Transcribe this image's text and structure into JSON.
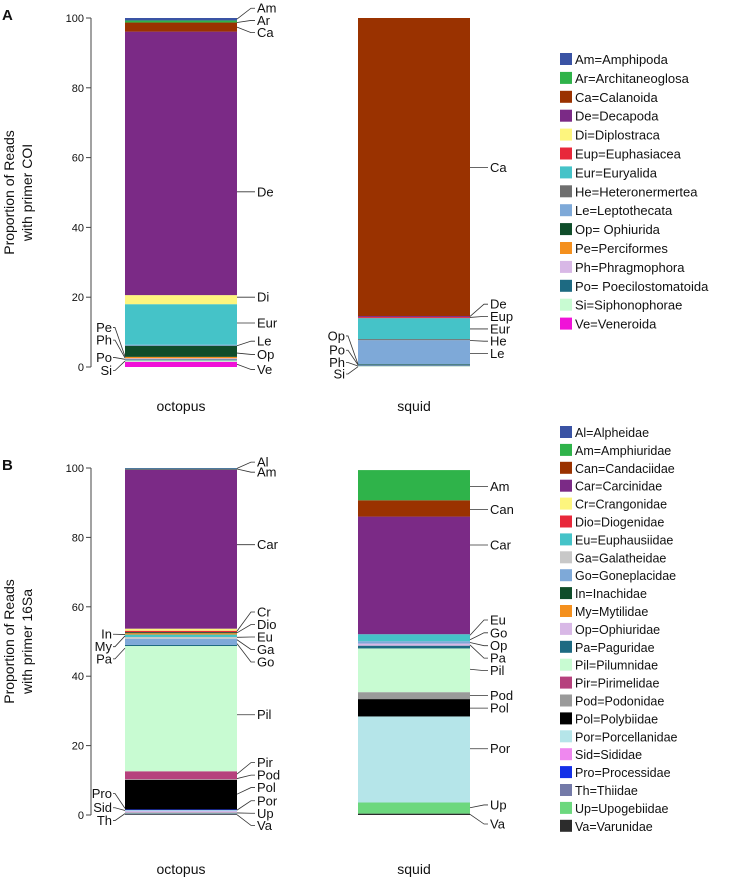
{
  "chart_data": [
    {
      "panel": "A",
      "type": "bar",
      "stacked": true,
      "ylabel_line1": "Proportion of Reads",
      "ylabel_line2": "with primer COI",
      "ylim": [
        0,
        100
      ],
      "yticks": [
        0,
        20,
        40,
        60,
        80,
        100
      ],
      "categories": [
        "octopus",
        "squid"
      ],
      "legend": [
        {
          "key": "Am",
          "label": "Am=Amphipoda",
          "color": "#3a53a4"
        },
        {
          "key": "Ar",
          "label": "Ar=Architaneoglosa",
          "color": "#2fb34a"
        },
        {
          "key": "Ca",
          "label": "Ca=Calanoida",
          "color": "#9a3200"
        },
        {
          "key": "De",
          "label": "De=Decapoda",
          "color": "#7b2a86"
        },
        {
          "key": "Di",
          "label": "Di=Diplostraca",
          "color": "#fdf57e"
        },
        {
          "key": "Eup",
          "label": "Eup=Euphasiacea",
          "color": "#e8283a"
        },
        {
          "key": "Eur",
          "label": "Eur=Euryalida",
          "color": "#45c3c8"
        },
        {
          "key": "He",
          "label": "He=Heteronermertea",
          "color": "#6f6f6f"
        },
        {
          "key": "Le",
          "label": "Le=Leptothecata",
          "color": "#7ea9d8"
        },
        {
          "key": "Op",
          "label": "Op= Ophiurida",
          "color": "#0f4d2a"
        },
        {
          "key": "Pe",
          "label": "Pe=Perciformes",
          "color": "#f4901e"
        },
        {
          "key": "Ph",
          "label": "Ph=Phragmophora",
          "color": "#d8b8e6"
        },
        {
          "key": "Po",
          "label": "Po= Poecilostomatoida",
          "color": "#1d6a82"
        },
        {
          "key": "Si",
          "label": "Si=Siphonophorae",
          "color": "#c8fbd2"
        },
        {
          "key": "Ve",
          "label": "Ve=Veneroida",
          "color": "#f012d8"
        }
      ],
      "series": [
        {
          "name": "octopus",
          "segments": [
            {
              "key": "Ve",
              "value": 1.5
            },
            {
              "key": "Si",
              "value": 0.4
            },
            {
              "key": "Po",
              "value": 0.3
            },
            {
              "key": "Ph",
              "value": 0.3
            },
            {
              "key": "Pe",
              "value": 0.4
            },
            {
              "key": "Op",
              "value": 3.2
            },
            {
              "key": "Le",
              "value": 0.3
            },
            {
              "key": "Eur",
              "value": 11.6
            },
            {
              "key": "Di",
              "value": 2.6
            },
            {
              "key": "De",
              "value": 75.5
            },
            {
              "key": "Ca",
              "value": 2.6
            },
            {
              "key": "Ar",
              "value": 0.6
            },
            {
              "key": "Am",
              "value": 0.7
            }
          ]
        },
        {
          "name": "squid",
          "segments": [
            {
              "key": "Si",
              "value": 0.2
            },
            {
              "key": "Ph",
              "value": 0.2
            },
            {
              "key": "Po",
              "value": 0.3
            },
            {
              "key": "Op",
              "value": 0.1
            },
            {
              "key": "Le",
              "value": 6.9
            },
            {
              "key": "He",
              "value": 0.3
            },
            {
              "key": "Eur",
              "value": 6.0
            },
            {
              "key": "Eup",
              "value": 0.3
            },
            {
              "key": "De",
              "value": 0.3
            },
            {
              "key": "Ca",
              "value": 85.4
            }
          ]
        }
      ],
      "annotations": [
        {
          "bar": "octopus",
          "side": "right",
          "label": "Am",
          "y": 102.8,
          "at": 99.7
        },
        {
          "bar": "octopus",
          "side": "right",
          "label": "Ar",
          "y": 99.3,
          "at": 98.7
        },
        {
          "bar": "octopus",
          "side": "right",
          "label": "Ca",
          "y": 95.8,
          "at": 97.4
        },
        {
          "bar": "octopus",
          "side": "right",
          "label": "De",
          "y": 50.2,
          "at": 50.2
        },
        {
          "bar": "octopus",
          "side": "right",
          "label": "Di",
          "y": 20.0,
          "at": 20.0
        },
        {
          "bar": "octopus",
          "side": "right",
          "label": "Eur",
          "y": 12.6,
          "at": 12.6
        },
        {
          "bar": "octopus",
          "side": "right",
          "label": "Le",
          "y": 7.4,
          "at": 6.1
        },
        {
          "bar": "octopus",
          "side": "right",
          "label": "Op",
          "y": 3.6,
          "at": 4.0
        },
        {
          "bar": "octopus",
          "side": "right",
          "label": "Ve",
          "y": -0.7,
          "at": 0.8
        },
        {
          "bar": "octopus",
          "side": "left",
          "label": "Pe",
          "y": 11.3,
          "at": 3.0
        },
        {
          "bar": "octopus",
          "side": "left",
          "label": "Ph",
          "y": 7.7,
          "at": 2.6
        },
        {
          "bar": "octopus",
          "side": "left",
          "label": "Po",
          "y": 2.7,
          "at": 2.2
        },
        {
          "bar": "octopus",
          "side": "left",
          "label": "Si",
          "y": -1.0,
          "at": 1.7
        },
        {
          "bar": "squid",
          "side": "right",
          "label": "Ca",
          "y": 57.2,
          "at": 57.2
        },
        {
          "bar": "squid",
          "side": "right",
          "label": "De",
          "y": 18.0,
          "at": 14.5
        },
        {
          "bar": "squid",
          "side": "right",
          "label": "Eup",
          "y": 14.5,
          "at": 14.2
        },
        {
          "bar": "squid",
          "side": "right",
          "label": "Eur",
          "y": 10.9,
          "at": 10.9
        },
        {
          "bar": "squid",
          "side": "right",
          "label": "He",
          "y": 7.4,
          "at": 7.6
        },
        {
          "bar": "squid",
          "side": "right",
          "label": "Le",
          "y": 3.9,
          "at": 3.9
        },
        {
          "bar": "squid",
          "side": "left",
          "label": "Op",
          "y": 8.9,
          "at": 0.8
        },
        {
          "bar": "squid",
          "side": "left",
          "label": "Po",
          "y": 4.8,
          "at": 0.6
        },
        {
          "bar": "squid",
          "side": "left",
          "label": "Ph",
          "y": 1.3,
          "at": 0.3
        },
        {
          "bar": "squid",
          "side": "left",
          "label": "Si",
          "y": -2.0,
          "at": 0.1
        }
      ]
    },
    {
      "panel": "B",
      "type": "bar",
      "stacked": true,
      "ylabel_line1": "Proportion of Reads",
      "ylabel_line2": "with primer 16Sa",
      "ylim": [
        0,
        100
      ],
      "yticks": [
        0,
        20,
        40,
        60,
        80,
        100
      ],
      "categories": [
        "octopus",
        "squid"
      ],
      "legend": [
        {
          "key": "Al",
          "label": "Al=Alpheidae",
          "color": "#3a53a4"
        },
        {
          "key": "Am",
          "label": "Am=Amphiuridae",
          "color": "#2fb34a"
        },
        {
          "key": "Can",
          "label": "Can=Candaciidae",
          "color": "#9a3200"
        },
        {
          "key": "Car",
          "label": "Car=Carcinidae",
          "color": "#7b2a86"
        },
        {
          "key": "Cr",
          "label": "Cr=Crangonidae",
          "color": "#fdf57e"
        },
        {
          "key": "Dio",
          "label": "Dio=Diogenidae",
          "color": "#e8283a"
        },
        {
          "key": "Eu",
          "label": "Eu=Euphausiidae",
          "color": "#45c3c8"
        },
        {
          "key": "Ga",
          "label": "Ga=Galatheidae",
          "color": "#c8c8c8"
        },
        {
          "key": "Go",
          "label": "Go=Goneplacidae",
          "color": "#7ea9d8"
        },
        {
          "key": "In",
          "label": "In=Inachidae",
          "color": "#0f4d2a"
        },
        {
          "key": "My",
          "label": "My=Mytilidae",
          "color": "#f4901e"
        },
        {
          "key": "Op",
          "label": "Op=Ophiuridae",
          "color": "#d8b8e6"
        },
        {
          "key": "Pa",
          "label": "Pa=Paguridae",
          "color": "#1d6a82"
        },
        {
          "key": "Pil",
          "label": "Pil=Pilumnidae",
          "color": "#c8fbd2"
        },
        {
          "key": "Pir",
          "label": "Pir=Pirimelidae",
          "color": "#b6417d"
        },
        {
          "key": "Pod",
          "label": "Pod=Podonidae",
          "color": "#9a9a9a"
        },
        {
          "key": "Pol",
          "label": "Pol=Polybiidae",
          "color": "#000000"
        },
        {
          "key": "Por",
          "label": "Por=Porcellanidae",
          "color": "#b5e5e9"
        },
        {
          "key": "Sid",
          "label": "Sid=Sididae",
          "color": "#ef88ef"
        },
        {
          "key": "Pro",
          "label": "Pro=Processidae",
          "color": "#1430e8"
        },
        {
          "key": "Th",
          "label": "Th=Thiidae",
          "color": "#747aa8"
        },
        {
          "key": "Up",
          "label": "Up=Upogebiidae",
          "color": "#6cd87e"
        },
        {
          "key": "Va",
          "label": "Va=Varunidae",
          "color": "#2c2c2c"
        }
      ],
      "series": [
        {
          "name": "octopus",
          "segments": [
            {
              "key": "Va",
              "value": 0.2
            },
            {
              "key": "Th",
              "value": 0.3
            },
            {
              "key": "Up",
              "value": 0.2
            },
            {
              "key": "Sid",
              "value": 0.3
            },
            {
              "key": "Por",
              "value": 0.4
            },
            {
              "key": "Pro",
              "value": 0.2
            },
            {
              "key": "Pol",
              "value": 8.5
            },
            {
              "key": "Pod",
              "value": 0.2
            },
            {
              "key": "Pir",
              "value": 2.3
            },
            {
              "key": "Pil",
              "value": 36.1
            },
            {
              "key": "Pa",
              "value": 0.3
            },
            {
              "key": "Go",
              "value": 1.8
            },
            {
              "key": "Ga",
              "value": 0.5
            },
            {
              "key": "Eu",
              "value": 0.7
            },
            {
              "key": "My",
              "value": 0.4
            },
            {
              "key": "In",
              "value": 0.3
            },
            {
              "key": "Dio",
              "value": 0.4
            },
            {
              "key": "Cr",
              "value": 0.6
            },
            {
              "key": "Car",
              "value": 45.9
            },
            {
              "key": "Am",
              "value": 0.2
            },
            {
              "key": "Al",
              "value": 0.2
            }
          ]
        },
        {
          "name": "squid",
          "segments": [
            {
              "key": "Va",
              "value": 0.4
            },
            {
              "key": "Up",
              "value": 3.2
            },
            {
              "key": "Por",
              "value": 24.8
            },
            {
              "key": "Pol",
              "value": 5.0
            },
            {
              "key": "Pod",
              "value": 2.0
            },
            {
              "key": "Pil",
              "value": 12.6
            },
            {
              "key": "Pa",
              "value": 0.8
            },
            {
              "key": "Op",
              "value": 0.6
            },
            {
              "key": "Go",
              "value": 0.7
            },
            {
              "key": "Eu",
              "value": 2.0
            },
            {
              "key": "Car",
              "value": 33.9
            },
            {
              "key": "Can",
              "value": 4.7
            },
            {
              "key": "Am",
              "value": 8.7
            }
          ]
        }
      ],
      "annotations": [
        {
          "bar": "octopus",
          "side": "right",
          "label": "Al",
          "y": 101.7,
          "at": 99.9
        },
        {
          "bar": "octopus",
          "side": "right",
          "label": "Am",
          "y": 98.8,
          "at": 99.7
        },
        {
          "bar": "octopus",
          "side": "right",
          "label": "Car",
          "y": 77.9,
          "at": 77.9
        },
        {
          "bar": "octopus",
          "side": "right",
          "label": "Cr",
          "y": 58.5,
          "at": 53.0
        },
        {
          "bar": "octopus",
          "side": "right",
          "label": "Dio",
          "y": 54.9,
          "at": 52.5
        },
        {
          "bar": "octopus",
          "side": "right",
          "label": "Eu",
          "y": 51.3,
          "at": 51.2
        },
        {
          "bar": "octopus",
          "side": "right",
          "label": "Ga",
          "y": 47.7,
          "at": 50.5
        },
        {
          "bar": "octopus",
          "side": "right",
          "label": "Go",
          "y": 44.1,
          "at": 49.4
        },
        {
          "bar": "octopus",
          "side": "right",
          "label": "Pil",
          "y": 28.9,
          "at": 28.9
        },
        {
          "bar": "octopus",
          "side": "right",
          "label": "Pir",
          "y": 15.1,
          "at": 11.8
        },
        {
          "bar": "octopus",
          "side": "right",
          "label": "Pod",
          "y": 11.5,
          "at": 10.5
        },
        {
          "bar": "octopus",
          "side": "right",
          "label": "Pol",
          "y": 7.9,
          "at": 6.0
        },
        {
          "bar": "octopus",
          "side": "right",
          "label": "Por",
          "y": 4.1,
          "at": 1.4
        },
        {
          "bar": "octopus",
          "side": "right",
          "label": "Up",
          "y": 0.5,
          "at": 0.6
        },
        {
          "bar": "octopus",
          "side": "right",
          "label": "Va",
          "y": -3.0,
          "at": 0.1
        },
        {
          "bar": "octopus",
          "side": "left",
          "label": "In",
          "y": 52.1,
          "at": 52.0
        },
        {
          "bar": "octopus",
          "side": "left",
          "label": "My",
          "y": 48.5,
          "at": 51.6
        },
        {
          "bar": "octopus",
          "side": "left",
          "label": "Pa",
          "y": 45.0,
          "at": 48.1
        },
        {
          "bar": "octopus",
          "side": "left",
          "label": "Pro",
          "y": 6.2,
          "at": 1.9
        },
        {
          "bar": "octopus",
          "side": "left",
          "label": "Sid",
          "y": 2.1,
          "at": 1.3
        },
        {
          "bar": "octopus",
          "side": "left",
          "label": "Th",
          "y": -1.6,
          "at": 0.4
        },
        {
          "bar": "squid",
          "side": "right",
          "label": "Am",
          "y": 94.7,
          "at": 94.7
        },
        {
          "bar": "squid",
          "side": "right",
          "label": "Can",
          "y": 88.0,
          "at": 88.0
        },
        {
          "bar": "squid",
          "side": "right",
          "label": "Car",
          "y": 77.8,
          "at": 77.8
        },
        {
          "bar": "squid",
          "side": "right",
          "label": "Eu",
          "y": 56.2,
          "at": 51.8
        },
        {
          "bar": "squid",
          "side": "right",
          "label": "Go",
          "y": 52.5,
          "at": 50.5
        },
        {
          "bar": "squid",
          "side": "right",
          "label": "Op",
          "y": 48.8,
          "at": 49.7
        },
        {
          "bar": "squid",
          "side": "right",
          "label": "Pa",
          "y": 45.2,
          "at": 49.0
        },
        {
          "bar": "squid",
          "side": "right",
          "label": "Pil",
          "y": 41.6,
          "at": 42.0
        },
        {
          "bar": "squid",
          "side": "right",
          "label": "Pod",
          "y": 34.4,
          "at": 34.4
        },
        {
          "bar": "squid",
          "side": "right",
          "label": "Pol",
          "y": 30.8,
          "at": 30.8
        },
        {
          "bar": "squid",
          "side": "right",
          "label": "Por",
          "y": 19.1,
          "at": 19.1
        },
        {
          "bar": "squid",
          "side": "right",
          "label": "Up",
          "y": 2.9,
          "at": 2.1
        },
        {
          "bar": "squid",
          "side": "right",
          "label": "Va",
          "y": -2.6,
          "at": 0.2
        }
      ]
    }
  ],
  "panels": {
    "a": {
      "letter": "A"
    },
    "b": {
      "letter": "B"
    }
  }
}
